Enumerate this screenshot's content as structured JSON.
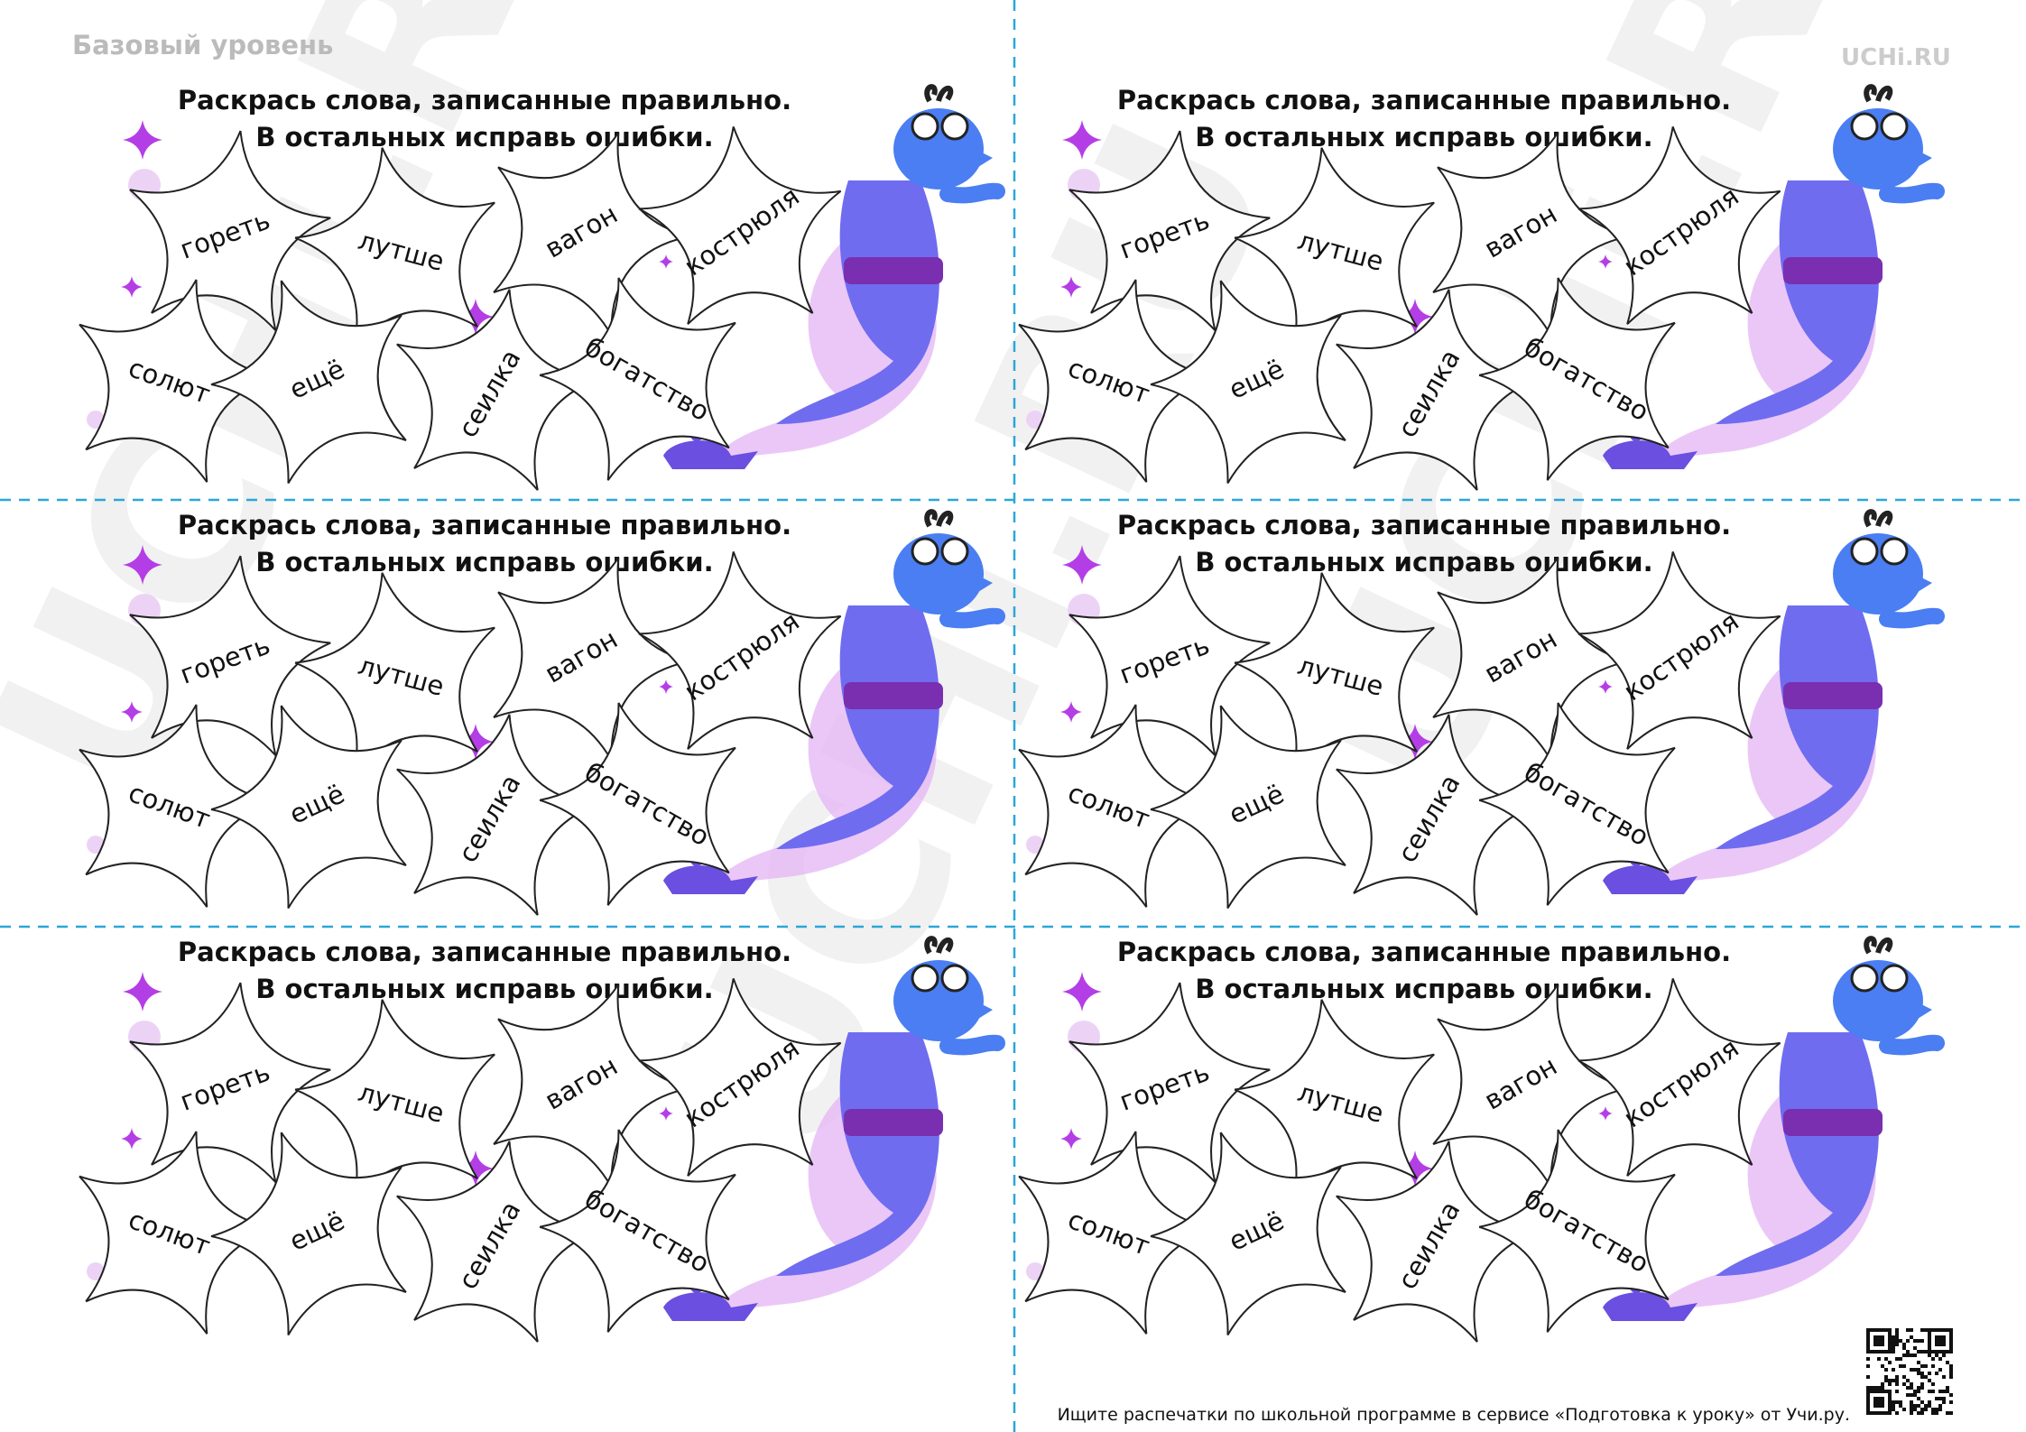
{
  "header": {
    "level": "Базовый уровень",
    "logo": "UCHi.RU"
  },
  "watermark": "UCHi.RU",
  "cards": [
    {
      "title": [
        "Раскрась слова, записанные правильно.",
        "В остальных исправь ошибки."
      ],
      "words": [
        "гореть",
        "лутше",
        "вагон",
        "кострюля",
        "солют",
        "ещё",
        "сеилка",
        "богатство"
      ]
    },
    {
      "title": [
        "Раскрась слова, записанные правильно.",
        "В остальных исправь ошибки."
      ],
      "words": [
        "гореть",
        "лутше",
        "вагон",
        "кострюля",
        "солют",
        "ещё",
        "сеилка",
        "богатство"
      ]
    },
    {
      "title": [
        "Раскрась слова, записанные правильно.",
        "В остальных исправь ошибки."
      ],
      "words": [
        "гореть",
        "лутше",
        "вагон",
        "кострюля",
        "солют",
        "ещё",
        "сеилка",
        "богатство"
      ]
    },
    {
      "title": [
        "Раскрась слова, записанные правильно.",
        "В остальных исправь ошибки."
      ],
      "words": [
        "гореть",
        "лутше",
        "вагон",
        "кострюля",
        "солют",
        "ещё",
        "сеилка",
        "богатство"
      ]
    },
    {
      "title": [
        "Раскрась слова, записанные правильно.",
        "В остальных исправь ошибки."
      ],
      "words": [
        "гореть",
        "лутше",
        "вагон",
        "кострюля",
        "солют",
        "ещё",
        "сеилка",
        "богатство"
      ]
    },
    {
      "title": [
        "Раскрась слова, записанные правильно.",
        "В остальных исправь ошибки."
      ],
      "words": [
        "гореть",
        "лутше",
        "вагон",
        "кострюля",
        "солют",
        "ещё",
        "сеилка",
        "богатство"
      ]
    }
  ],
  "footer": {
    "text": "Ищите распечатки по школьной программе в сервисе «Подготовка к уроку» от Учи.ру."
  }
}
